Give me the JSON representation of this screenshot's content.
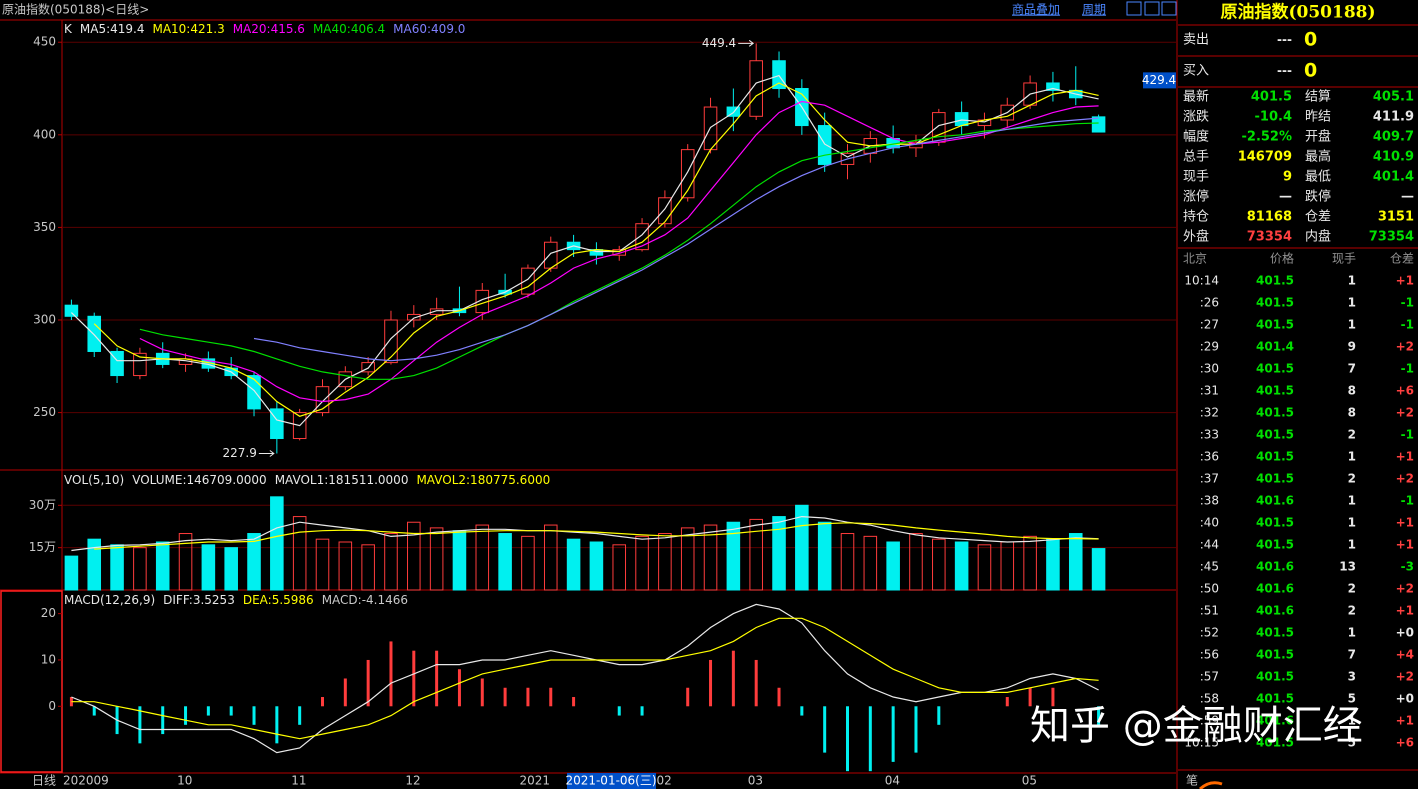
{
  "header": {
    "title": "原油指数(050188)<日线>",
    "buttons": [
      "商品叠加",
      "周期"
    ]
  },
  "chart_data": [
    {
      "type": "candlestick",
      "label": "K",
      "grid": true,
      "categories": [
        "202009",
        null,
        null,
        null,
        null,
        "10",
        null,
        null,
        null,
        null,
        "11",
        null,
        null,
        null,
        null,
        "12",
        null,
        null,
        null,
        null,
        "2021",
        null,
        null,
        null,
        null,
        null,
        "02",
        null,
        null,
        null,
        "03",
        null,
        null,
        null,
        null,
        null,
        "04",
        null,
        null,
        null,
        null,
        null,
        "05",
        null,
        null,
        null
      ],
      "candles": [
        [
          308,
          311,
          300,
          302
        ],
        [
          302,
          304,
          280,
          283
        ],
        [
          283,
          285,
          266,
          270
        ],
        [
          270,
          285,
          268,
          282
        ],
        [
          282,
          288,
          274,
          276
        ],
        [
          276,
          282,
          272,
          279
        ],
        [
          279,
          283,
          272,
          274
        ],
        [
          274,
          280,
          268,
          270
        ],
        [
          270,
          272,
          248,
          252
        ],
        [
          252,
          256,
          227.9,
          236
        ],
        [
          236,
          252,
          235,
          250
        ],
        [
          250,
          268,
          248,
          264
        ],
        [
          264,
          275,
          262,
          272
        ],
        [
          272,
          280,
          270,
          277
        ],
        [
          277,
          305,
          276,
          300
        ],
        [
          300,
          308,
          296,
          303
        ],
        [
          303,
          312,
          300,
          306
        ],
        [
          306,
          318,
          302,
          304
        ],
        [
          304,
          320,
          300,
          316
        ],
        [
          316,
          325,
          312,
          314
        ],
        [
          314,
          330,
          312,
          328
        ],
        [
          328,
          345,
          326,
          342
        ],
        [
          342,
          346,
          334,
          338
        ],
        [
          338,
          342,
          330,
          335
        ],
        [
          335,
          340,
          332,
          338
        ],
        [
          338,
          355,
          337,
          352
        ],
        [
          352,
          370,
          350,
          366
        ],
        [
          366,
          395,
          364,
          392
        ],
        [
          392,
          420,
          390,
          415
        ],
        [
          415,
          425,
          402,
          410
        ],
        [
          410,
          449.4,
          408,
          440
        ],
        [
          440,
          445,
          420,
          425
        ],
        [
          425,
          430,
          400,
          405
        ],
        [
          405,
          412,
          380,
          384
        ],
        [
          384,
          395,
          376,
          390
        ],
        [
          390,
          402,
          385,
          398
        ],
        [
          398,
          405,
          390,
          393
        ],
        [
          393,
          400,
          388,
          396
        ],
        [
          396,
          414,
          394,
          412
        ],
        [
          412,
          418,
          400,
          405
        ],
        [
          405,
          412,
          398,
          408
        ],
        [
          408,
          420,
          404,
          416
        ],
        [
          416,
          432,
          414,
          428
        ],
        [
          428,
          434,
          418,
          424
        ],
        [
          424,
          437,
          416,
          420
        ],
        [
          409.7,
          410.9,
          401.4,
          401.5
        ]
      ],
      "up_color": "#ff3c3c",
      "down_color": "#00f0f0",
      "series": [
        {
          "name": "MA5:419.4",
          "color": "#e8e8e8",
          "values": [
            304,
            292,
            278,
            278,
            279,
            278,
            276,
            272,
            262,
            246,
            243,
            256,
            268,
            274,
            290,
            301,
            305,
            305,
            311,
            315,
            322,
            336,
            340,
            337,
            337,
            346,
            360,
            380,
            404,
            412,
            428,
            432,
            415,
            395,
            388,
            394,
            395,
            395,
            405,
            408,
            407,
            412,
            422,
            425,
            422,
            419.4
          ]
        },
        {
          "name": "MA10:421.3",
          "color": "#ffff00",
          "values": [
            null,
            298,
            286,
            280,
            279,
            279,
            277,
            274,
            268,
            256,
            248,
            252,
            261,
            269,
            280,
            293,
            302,
            305,
            309,
            313,
            318,
            328,
            336,
            338,
            337,
            342,
            353,
            370,
            392,
            406,
            421,
            428,
            422,
            408,
            396,
            394,
            395,
            395,
            400,
            405,
            408,
            410,
            416,
            422,
            424,
            421.3
          ]
        },
        {
          "name": "MA20:415.6",
          "color": "#ff00ff",
          "values": [
            null,
            null,
            null,
            290,
            284,
            281,
            278,
            276,
            272,
            264,
            258,
            256,
            257,
            260,
            268,
            278,
            288,
            296,
            303,
            308,
            313,
            320,
            328,
            333,
            336,
            340,
            346,
            355,
            370,
            385,
            400,
            412,
            418,
            416,
            410,
            404,
            398,
            395,
            396,
            398,
            400,
            404,
            408,
            412,
            415,
            415.6
          ]
        },
        {
          "name": "MA40:406.4",
          "color": "#00e000",
          "values": [
            null,
            null,
            null,
            295,
            292,
            290,
            288,
            286,
            283,
            279,
            275,
            272,
            270,
            268,
            268,
            270,
            274,
            280,
            286,
            292,
            297,
            303,
            310,
            316,
            322,
            328,
            335,
            343,
            352,
            362,
            372,
            380,
            386,
            389,
            391,
            393,
            395,
            397,
            399,
            400,
            402,
            403,
            404,
            405,
            406,
            406.4
          ]
        },
        {
          "name": "MA60:409.0",
          "color": "#8080ff",
          "values": [
            null,
            null,
            null,
            null,
            null,
            null,
            null,
            null,
            290,
            288,
            285,
            283,
            281,
            279,
            278,
            279,
            281,
            284,
            288,
            292,
            297,
            303,
            309,
            315,
            321,
            327,
            334,
            341,
            349,
            357,
            365,
            372,
            378,
            383,
            387,
            390,
            393,
            395,
            397,
            399,
            401,
            403,
            405,
            407,
            408,
            409.0
          ]
        }
      ],
      "ylim": [
        219,
        462
      ],
      "yticks": [
        250,
        300,
        350,
        400,
        450
      ],
      "cursor_price": 429.4
    },
    {
      "type": "bar",
      "label": "VOL(5,10)",
      "grid": true,
      "series": [
        {
          "name": "VOLUME:146709.0000",
          "color": "#e8e8e8",
          "values": [
            120000,
            180000,
            160000,
            150000,
            170000,
            200000,
            160000,
            150000,
            200000,
            330000,
            260000,
            180000,
            170000,
            160000,
            200000,
            240000,
            220000,
            210000,
            230000,
            200000,
            190000,
            230000,
            180000,
            170000,
            160000,
            190000,
            200000,
            220000,
            230000,
            240000,
            250000,
            260000,
            300000,
            240000,
            200000,
            190000,
            170000,
            200000,
            180000,
            170000,
            160000,
            170000,
            190000,
            180000,
            200000,
            146709
          ]
        },
        {
          "name": "MAVOL1:181511.0000",
          "color": "#e8e8e8",
          "values": [
            140000,
            150000,
            158000,
            160000,
            165000,
            175000,
            180000,
            175000,
            180000,
            220000,
            240000,
            230000,
            220000,
            210000,
            190000,
            195000,
            205000,
            210000,
            215000,
            215000,
            210000,
            210000,
            205000,
            200000,
            190000,
            180000,
            185000,
            195000,
            205000,
            215000,
            230000,
            240000,
            260000,
            255000,
            240000,
            230000,
            210000,
            195000,
            185000,
            180000,
            175000,
            170000,
            172000,
            178000,
            185000,
            181511
          ]
        },
        {
          "name": "MAVOL2:180775.6000",
          "color": "#ffff00",
          "values": [
            null,
            145000,
            150000,
            155000,
            160000,
            165000,
            170000,
            170000,
            172000,
            190000,
            205000,
            210000,
            212000,
            210000,
            205000,
            200000,
            200000,
            205000,
            208000,
            210000,
            210000,
            210000,
            208000,
            205000,
            200000,
            195000,
            192000,
            192000,
            195000,
            200000,
            208000,
            215000,
            228000,
            235000,
            238000,
            235000,
            230000,
            220000,
            212000,
            205000,
            198000,
            190000,
            185000,
            182000,
            182000,
            180775.6
          ]
        }
      ],
      "ylim": [
        0,
        425000
      ],
      "yticks": [
        {
          "value": 150000,
          "label": "15万"
        },
        {
          "value": 300000,
          "label": "30万"
        }
      ]
    },
    {
      "type": "macd",
      "label": "MACD(12,26,9)",
      "grid": false,
      "series": [
        {
          "name": "DIFF:3.5253",
          "color": "#e8e8e8",
          "values": [
            2,
            0,
            -3,
            -5,
            -5,
            -5,
            -5,
            -5,
            -7,
            -10,
            -9,
            -5,
            -2,
            1,
            5,
            7,
            9,
            9,
            10,
            10,
            11,
            12,
            11,
            10,
            9,
            9,
            10,
            13,
            17,
            20,
            22,
            21,
            18,
            12,
            7,
            4,
            2,
            1,
            2,
            3,
            3,
            4,
            6,
            7,
            6,
            3.5253
          ]
        },
        {
          "name": "DEA:5.5986",
          "color": "#ffff00",
          "values": [
            1,
            1,
            0,
            -1,
            -2,
            -3,
            -4,
            -4,
            -5,
            -6,
            -7,
            -6,
            -5,
            -4,
            -2,
            1,
            3,
            5,
            7,
            8,
            9,
            10,
            10,
            10,
            10,
            10,
            10,
            11,
            12,
            14,
            17,
            19,
            19,
            17,
            14,
            11,
            8,
            6,
            4,
            3,
            3,
            3,
            4,
            5,
            6,
            5.5986
          ]
        },
        {
          "name": "MACD:-4.1466",
          "color": "#c8c8c8",
          "up_color": "#ff3c3c",
          "down_color": "#00f0f0",
          "values": [
            2,
            -2,
            -6,
            -8,
            -6,
            -4,
            -2,
            -2,
            -4,
            -8,
            -4,
            2,
            6,
            10,
            14,
            12,
            12,
            8,
            6,
            4,
            4,
            4,
            2,
            0,
            -2,
            -2,
            0,
            4,
            10,
            12,
            10,
            4,
            -2,
            -10,
            -14,
            -14,
            -12,
            -10,
            -4,
            0,
            0,
            2,
            4,
            4,
            0,
            -4.1466
          ]
        }
      ],
      "ylim": [
        -14.4,
        25.1
      ],
      "yticks": [
        0,
        10,
        20
      ]
    }
  ],
  "footer": {
    "period": "日线",
    "cursor_date": "2021-01-06(三)"
  },
  "quote": {
    "title": "原油指数(050188)",
    "ask": [
      "卖出",
      "---",
      "0"
    ],
    "bid": [
      "买入",
      "---",
      "0"
    ],
    "rows": [
      [
        {
          "text": "最新"
        },
        {
          "text": "401.5",
          "color": "#00e000"
        },
        {
          "text": "结算"
        },
        {
          "text": "405.1",
          "color": "#00e000"
        }
      ],
      [
        {
          "text": "涨跌"
        },
        {
          "text": "-10.4",
          "color": "#00e000"
        },
        {
          "text": "昨结"
        },
        {
          "text": "411.9",
          "color": "#e8e8e8"
        }
      ],
      [
        {
          "text": "幅度"
        },
        {
          "text": "-2.52%",
          "color": "#00e000"
        },
        {
          "text": "开盘"
        },
        {
          "text": "409.7",
          "color": "#00e000"
        }
      ],
      [
        {
          "text": "总手"
        },
        {
          "text": "146709",
          "color": "#ffff00"
        },
        {
          "text": "最高"
        },
        {
          "text": "410.9",
          "color": "#00e000"
        }
      ],
      [
        {
          "text": "现手"
        },
        {
          "text": "9",
          "color": "#ffff00"
        },
        {
          "text": "最低"
        },
        {
          "text": "401.4",
          "color": "#00e000"
        }
      ],
      [
        {
          "text": "涨停"
        },
        {
          "text": "—",
          "color": "#e8e8e8"
        },
        {
          "text": "跌停"
        },
        {
          "text": "—",
          "color": "#e8e8e8"
        }
      ],
      [
        {
          "text": "持仓"
        },
        {
          "text": "81168",
          "color": "#ffff00"
        },
        {
          "text": "仓差"
        },
        {
          "text": "3151",
          "color": "#ffff00"
        }
      ],
      [
        {
          "text": "外盘"
        },
        {
          "text": "73354",
          "color": "#ff4040"
        },
        {
          "text": "内盘"
        },
        {
          "text": "73354",
          "color": "#00e000"
        }
      ]
    ]
  },
  "ticks": {
    "header": [
      "北京",
      "价格",
      "现手",
      "仓差"
    ],
    "rows": [
      [
        "10:14",
        "401.5",
        "1",
        "+1"
      ],
      [
        ":26",
        "401.5",
        "1",
        "-1"
      ],
      [
        ":27",
        "401.5",
        "1",
        "-1"
      ],
      [
        ":29",
        "401.4",
        "9",
        "+2"
      ],
      [
        ":30",
        "401.5",
        "7",
        "-1"
      ],
      [
        ":31",
        "401.5",
        "8",
        "+6"
      ],
      [
        ":32",
        "401.5",
        "8",
        "+2"
      ],
      [
        ":33",
        "401.5",
        "2",
        "-1"
      ],
      [
        ":36",
        "401.5",
        "1",
        "+1"
      ],
      [
        ":37",
        "401.5",
        "2",
        "+2"
      ],
      [
        ":38",
        "401.6",
        "1",
        "-1"
      ],
      [
        ":40",
        "401.5",
        "1",
        "+1"
      ],
      [
        ":44",
        "401.5",
        "1",
        "+1"
      ],
      [
        ":45",
        "401.6",
        "13",
        "-3"
      ],
      [
        ":50",
        "401.6",
        "2",
        "+2"
      ],
      [
        ":51",
        "401.6",
        "2",
        "+1"
      ],
      [
        ":52",
        "401.5",
        "1",
        "+0"
      ],
      [
        ":56",
        "401.5",
        "7",
        "+4"
      ],
      [
        ":57",
        "401.5",
        "3",
        "+2"
      ],
      [
        ":58",
        "401.5",
        "5",
        "+0"
      ],
      [
        ":59",
        "401.6",
        "1",
        "+1"
      ],
      [
        "10:15",
        "401.5",
        "5",
        "+6"
      ]
    ],
    "footer": "笔"
  },
  "watermark": "知乎 @金融财汇经"
}
